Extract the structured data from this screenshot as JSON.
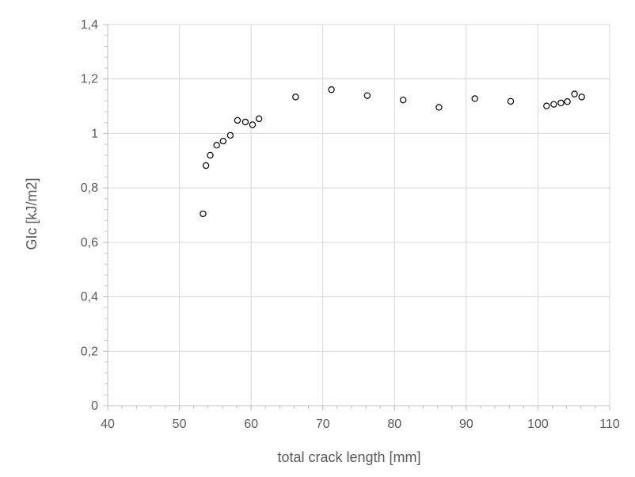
{
  "chart_data": {
    "type": "scatter",
    "title": "",
    "xlabel": "total crack length [mm]",
    "ylabel": "GIc [kJ/m2]",
    "xlim": [
      40,
      110
    ],
    "ylim": [
      0,
      1.4
    ],
    "x_ticks": [
      "40",
      "50",
      "60",
      "70",
      "80",
      "90",
      "100",
      "110"
    ],
    "y_ticks": [
      "0",
      "0,2",
      "0,4",
      "0,6",
      "0,8",
      "1",
      "1,2",
      "1,4"
    ],
    "grid": true,
    "legend": "none",
    "marker": "open-circle",
    "series": [
      {
        "x": [
          53.3,
          53.7,
          54.3,
          55.2,
          56.1,
          57.1,
          58.1,
          59.2,
          60.2,
          61.1,
          66.2,
          71.2,
          76.2,
          81.2,
          86.2,
          91.2,
          96.2,
          101.2,
          102.2,
          103.2,
          104.1,
          105.1,
          106.1
        ],
        "y": [
          0.705,
          0.882,
          0.92,
          0.957,
          0.972,
          0.993,
          1.048,
          1.042,
          1.032,
          1.054,
          1.134,
          1.161,
          1.139,
          1.123,
          1.096,
          1.128,
          1.118,
          1.101,
          1.107,
          1.112,
          1.117,
          1.145,
          1.134
        ]
      }
    ],
    "colors": {
      "marker_stroke": "#000000",
      "marker_fill": "#ffffff",
      "grid": "#d9d9d9",
      "axis": "#bfbfbf",
      "text": "#595959"
    }
  }
}
